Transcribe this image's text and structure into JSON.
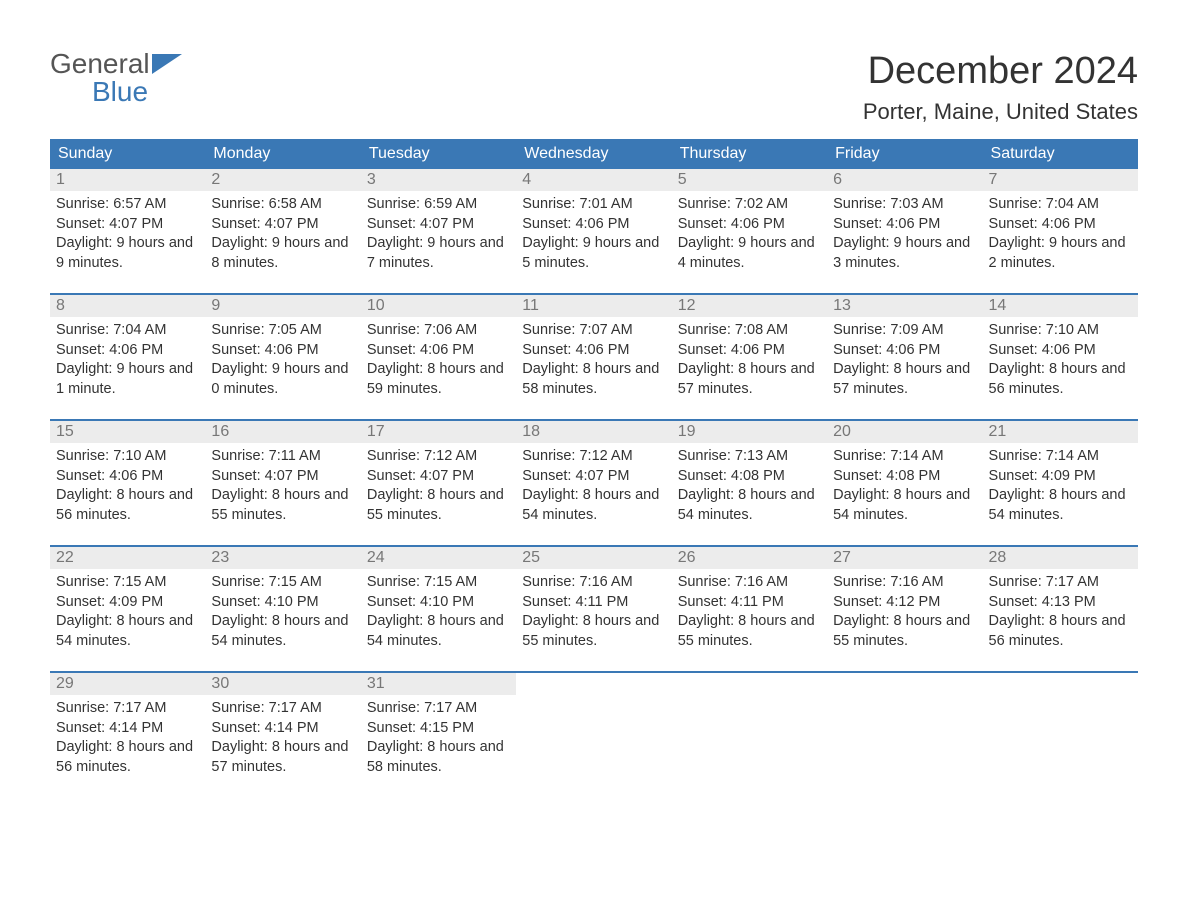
{
  "logo": {
    "general": "General",
    "blue": "Blue",
    "flag_color": "#3a78b5"
  },
  "title": "December 2024",
  "location": "Porter, Maine, United States",
  "colors": {
    "header_bg": "#3a78b5",
    "header_text": "#ffffff",
    "daynum_bg": "#ececec",
    "daynum_text": "#777777",
    "body_text": "#333333",
    "week_border": "#3a78b5",
    "page_bg": "#ffffff"
  },
  "fonts": {
    "title_size": 38,
    "location_size": 22,
    "dow_size": 16,
    "daynum_size": 16,
    "body_size": 14.5
  },
  "days_of_week": [
    "Sunday",
    "Monday",
    "Tuesday",
    "Wednesday",
    "Thursday",
    "Friday",
    "Saturday"
  ],
  "weeks": [
    [
      {
        "n": "1",
        "sr": "6:57 AM",
        "ss": "4:07 PM",
        "dl": "9 hours and 9 minutes."
      },
      {
        "n": "2",
        "sr": "6:58 AM",
        "ss": "4:07 PM",
        "dl": "9 hours and 8 minutes."
      },
      {
        "n": "3",
        "sr": "6:59 AM",
        "ss": "4:07 PM",
        "dl": "9 hours and 7 minutes."
      },
      {
        "n": "4",
        "sr": "7:01 AM",
        "ss": "4:06 PM",
        "dl": "9 hours and 5 minutes."
      },
      {
        "n": "5",
        "sr": "7:02 AM",
        "ss": "4:06 PM",
        "dl": "9 hours and 4 minutes."
      },
      {
        "n": "6",
        "sr": "7:03 AM",
        "ss": "4:06 PM",
        "dl": "9 hours and 3 minutes."
      },
      {
        "n": "7",
        "sr": "7:04 AM",
        "ss": "4:06 PM",
        "dl": "9 hours and 2 minutes."
      }
    ],
    [
      {
        "n": "8",
        "sr": "7:04 AM",
        "ss": "4:06 PM",
        "dl": "9 hours and 1 minute."
      },
      {
        "n": "9",
        "sr": "7:05 AM",
        "ss": "4:06 PM",
        "dl": "9 hours and 0 minutes."
      },
      {
        "n": "10",
        "sr": "7:06 AM",
        "ss": "4:06 PM",
        "dl": "8 hours and 59 minutes."
      },
      {
        "n": "11",
        "sr": "7:07 AM",
        "ss": "4:06 PM",
        "dl": "8 hours and 58 minutes."
      },
      {
        "n": "12",
        "sr": "7:08 AM",
        "ss": "4:06 PM",
        "dl": "8 hours and 57 minutes."
      },
      {
        "n": "13",
        "sr": "7:09 AM",
        "ss": "4:06 PM",
        "dl": "8 hours and 57 minutes."
      },
      {
        "n": "14",
        "sr": "7:10 AM",
        "ss": "4:06 PM",
        "dl": "8 hours and 56 minutes."
      }
    ],
    [
      {
        "n": "15",
        "sr": "7:10 AM",
        "ss": "4:06 PM",
        "dl": "8 hours and 56 minutes."
      },
      {
        "n": "16",
        "sr": "7:11 AM",
        "ss": "4:07 PM",
        "dl": "8 hours and 55 minutes."
      },
      {
        "n": "17",
        "sr": "7:12 AM",
        "ss": "4:07 PM",
        "dl": "8 hours and 55 minutes."
      },
      {
        "n": "18",
        "sr": "7:12 AM",
        "ss": "4:07 PM",
        "dl": "8 hours and 54 minutes."
      },
      {
        "n": "19",
        "sr": "7:13 AM",
        "ss": "4:08 PM",
        "dl": "8 hours and 54 minutes."
      },
      {
        "n": "20",
        "sr": "7:14 AM",
        "ss": "4:08 PM",
        "dl": "8 hours and 54 minutes."
      },
      {
        "n": "21",
        "sr": "7:14 AM",
        "ss": "4:09 PM",
        "dl": "8 hours and 54 minutes."
      }
    ],
    [
      {
        "n": "22",
        "sr": "7:15 AM",
        "ss": "4:09 PM",
        "dl": "8 hours and 54 minutes."
      },
      {
        "n": "23",
        "sr": "7:15 AM",
        "ss": "4:10 PM",
        "dl": "8 hours and 54 minutes."
      },
      {
        "n": "24",
        "sr": "7:15 AM",
        "ss": "4:10 PM",
        "dl": "8 hours and 54 minutes."
      },
      {
        "n": "25",
        "sr": "7:16 AM",
        "ss": "4:11 PM",
        "dl": "8 hours and 55 minutes."
      },
      {
        "n": "26",
        "sr": "7:16 AM",
        "ss": "4:11 PM",
        "dl": "8 hours and 55 minutes."
      },
      {
        "n": "27",
        "sr": "7:16 AM",
        "ss": "4:12 PM",
        "dl": "8 hours and 55 minutes."
      },
      {
        "n": "28",
        "sr": "7:17 AM",
        "ss": "4:13 PM",
        "dl": "8 hours and 56 minutes."
      }
    ],
    [
      {
        "n": "29",
        "sr": "7:17 AM",
        "ss": "4:14 PM",
        "dl": "8 hours and 56 minutes."
      },
      {
        "n": "30",
        "sr": "7:17 AM",
        "ss": "4:14 PM",
        "dl": "8 hours and 57 minutes."
      },
      {
        "n": "31",
        "sr": "7:17 AM",
        "ss": "4:15 PM",
        "dl": "8 hours and 58 minutes."
      },
      null,
      null,
      null,
      null
    ]
  ],
  "labels": {
    "sunrise": "Sunrise: ",
    "sunset": "Sunset: ",
    "daylight": "Daylight: "
  }
}
